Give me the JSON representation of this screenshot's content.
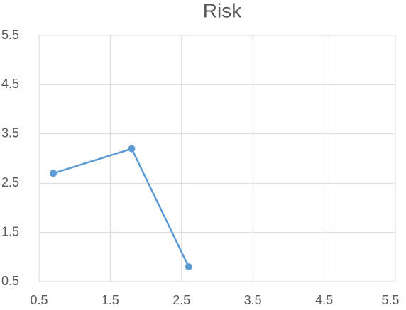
{
  "chart_data": {
    "type": "line",
    "title": "Risk",
    "x": [
      0.7,
      1.8,
      2.6
    ],
    "series": [
      {
        "color": "#5b9bd5",
        "values": [
          2.7,
          3.2,
          0.8
        ]
      }
    ],
    "xlim": [
      0.5,
      5.5
    ],
    "xticks": [
      0.5,
      1.5,
      2.5,
      3.5,
      4.5,
      5.5
    ],
    "ylim": [
      0.5,
      5.5
    ],
    "yticks": [
      0.5,
      1.5,
      2.5,
      3.5,
      4.5,
      5.5
    ],
    "grid": true,
    "markers": true
  }
}
